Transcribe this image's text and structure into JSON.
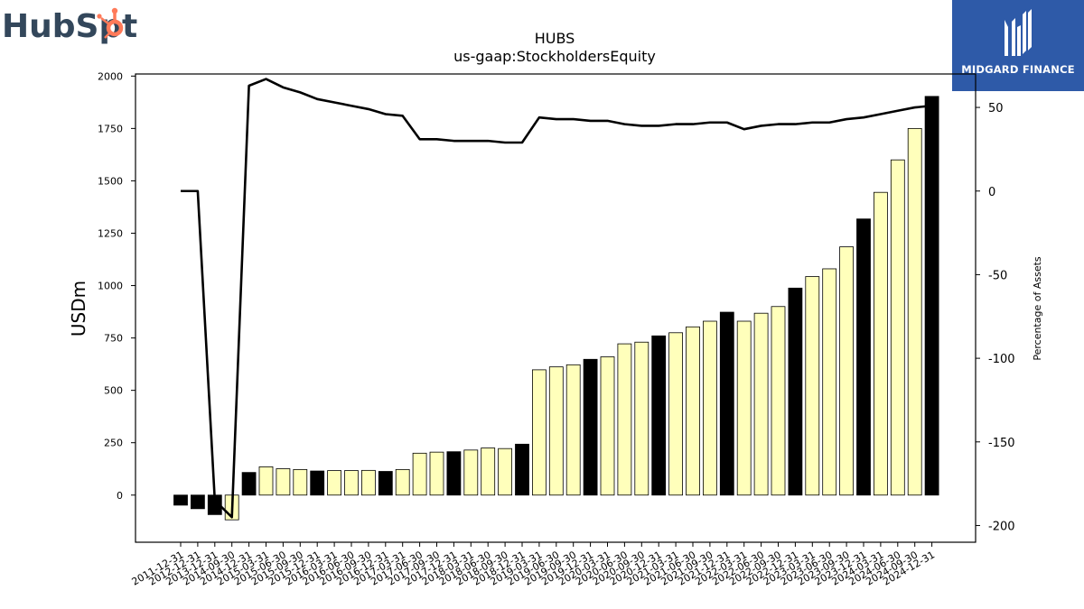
{
  "branding": {
    "left_logo_text_a": "HubSp",
    "left_logo_text_b": "t",
    "left_logo_color": "#33475b",
    "left_logo_accent": "#ff7a59",
    "right_logo_text": "MIDGARD FINANCE",
    "right_logo_bg": "#2e5aa8"
  },
  "chart_data": {
    "type": "bar",
    "title": "HUBS",
    "subtitle": "us-gaap:StockholdersEquity",
    "ylabel": "USDm",
    "y2label": "Percentage of Assets",
    "ylim": [
      -225,
      2010
    ],
    "y2lim": [
      -210,
      70
    ],
    "yticks": [
      0,
      250,
      500,
      750,
      1000,
      1250,
      1500,
      1750,
      2000
    ],
    "y2ticks": [
      -200,
      -150,
      -100,
      -50,
      0,
      50
    ],
    "grid": false,
    "categories": [
      "2011-12-31",
      "2012-12-31",
      "2013-12-31",
      "2014-09-30",
      "2014-12-31",
      "2015-03-31",
      "2015-06-30",
      "2015-09-30",
      "2015-12-31",
      "2016-03-31",
      "2016-06-30",
      "2016-09-30",
      "2016-12-31",
      "2017-03-31",
      "2017-06-30",
      "2017-09-30",
      "2017-12-31",
      "2018-03-31",
      "2018-06-30",
      "2018-09-30",
      "2018-12-31",
      "2019-03-31",
      "2019-06-30",
      "2019-09-30",
      "2019-12-31",
      "2020-03-31",
      "2020-06-30",
      "2020-09-30",
      "2020-12-31",
      "2021-03-31",
      "2021-06-30",
      "2021-09-30",
      "2021-12-31",
      "2022-03-31",
      "2022-06-30",
      "2022-09-30",
      "2022-12-31",
      "2023-03-31",
      "2023-06-30",
      "2023-09-30",
      "2023-12-31",
      "2024-03-31",
      "2024-06-30",
      "2024-09-30",
      "2024-12-31"
    ],
    "series": [
      {
        "values": [
          -48,
          -65,
          -93,
          -118,
          108,
          135,
          126,
          122,
          115,
          117,
          117,
          118,
          113,
          122,
          200,
          205,
          207,
          215,
          225,
          222,
          243,
          598,
          612,
          622,
          648,
          660,
          722,
          730,
          760,
          775,
          803,
          830,
          873,
          830,
          868,
          900,
          988,
          1043,
          1080,
          1185,
          1318,
          1445,
          1600,
          1750,
          1903
        ],
        "bar_colors": [
          "black",
          "black",
          "black",
          "yellow",
          "black",
          "yellow",
          "yellow",
          "yellow",
          "black",
          "yellow",
          "yellow",
          "yellow",
          "black",
          "yellow",
          "yellow",
          "yellow",
          "black",
          "yellow",
          "yellow",
          "yellow",
          "black",
          "yellow",
          "yellow",
          "yellow",
          "black",
          "yellow",
          "yellow",
          "yellow",
          "black",
          "yellow",
          "yellow",
          "yellow",
          "black",
          "yellow",
          "yellow",
          "yellow",
          "black",
          "yellow",
          "yellow",
          "yellow",
          "black",
          "yellow",
          "yellow",
          "yellow",
          "black"
        ]
      },
      {
        "axis": "right",
        "type": "line",
        "values": [
          0,
          0,
          -185,
          -195,
          63,
          67,
          62,
          59,
          55,
          53,
          51,
          49,
          46,
          45,
          31,
          31,
          30,
          30,
          30,
          29,
          29,
          44,
          43,
          43,
          42,
          42,
          40,
          39,
          39,
          40,
          40,
          41,
          41,
          37,
          39,
          40,
          40,
          41,
          41,
          43,
          44,
          46,
          48,
          50,
          51
        ]
      }
    ],
    "colors": {
      "yellow": "#ffffbb",
      "black": "#000000",
      "line": "#000000"
    }
  }
}
